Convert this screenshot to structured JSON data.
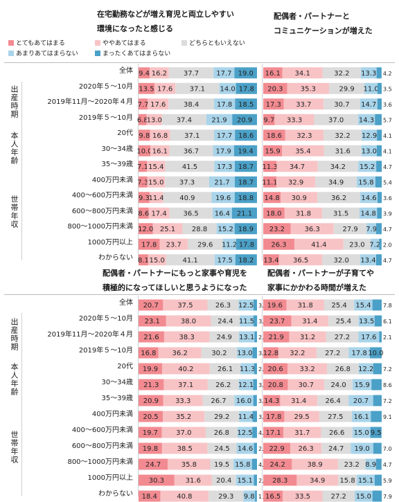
{
  "legend": [
    {
      "label": "とてもあてはまる",
      "color": "#f28b91"
    },
    {
      "label": "ややあてはまる",
      "color": "#f8c3c5"
    },
    {
      "label": "どちらともいえない",
      "color": "#dcdcdc"
    },
    {
      "label": "あまりあてはまらない",
      "color": "#a9d4ea"
    },
    {
      "label": "まったくあてはまらない",
      "color": "#4ba0c7"
    }
  ],
  "row_labels": [
    "全体",
    "2020年５～10月",
    "2019年11月～2020年４月",
    "2019年５～10月",
    "20代",
    "30～34歳",
    "35～39歳",
    "400万円未満",
    "400～600万円未満",
    "600～800万円未満",
    "800～1000万円未満",
    "1000万円以上",
    "わからない"
  ],
  "groups": [
    {
      "label": "出産時期",
      "start": 1,
      "end": 3
    },
    {
      "label": "本人年齢",
      "start": 4,
      "end": 6
    },
    {
      "label": "世帯年収",
      "start": 7,
      "end": 12
    }
  ],
  "chart_data": [
    {
      "type": "bar",
      "stacked": true,
      "orientation": "horizontal",
      "title": [
        "在宅勤務などが増え育児と両立しやすい",
        "環境になったと感じる"
      ],
      "categories": [
        "全体",
        "2020年５～10月",
        "2019年11月～2020年４月",
        "2019年５～10月",
        "20代",
        "30～34歳",
        "35～39歳",
        "400万円未満",
        "400～600万円未満",
        "600～800万円未満",
        "800～1000万円未満",
        "1000万円以上",
        "わからない"
      ],
      "series": [
        {
          "name": "とてもあてはまる",
          "values": [
            9.4,
            13.5,
            7.7,
            6.8,
            9.8,
            10.0,
            7.1,
            7.3,
            9.3,
            8.6,
            12.0,
            17.8,
            8.1
          ]
        },
        {
          "name": "ややあてはまる",
          "values": [
            16.2,
            17.6,
            17.6,
            13.0,
            16.8,
            16.1,
            15.4,
            15.0,
            11.4,
            17.4,
            25.1,
            23.7,
            15.0
          ]
        },
        {
          "name": "どちらともいえない",
          "values": [
            37.7,
            37.1,
            38.4,
            37.4,
            37.1,
            36.7,
            41.5,
            37.3,
            40.9,
            36.5,
            28.8,
            29.6,
            41.1
          ]
        },
        {
          "name": "あまりあてはまらない",
          "values": [
            17.7,
            14.0,
            17.8,
            21.9,
            17.7,
            17.9,
            17.3,
            21.7,
            19.6,
            16.4,
            15.2,
            11.2,
            17.5
          ]
        },
        {
          "name": "まったくあてはまらない",
          "values": [
            19.0,
            17.8,
            18.5,
            20.9,
            18.6,
            19.4,
            18.7,
            18.7,
            18.8,
            21.1,
            18.9,
            17.8,
            18.2
          ]
        }
      ]
    },
    {
      "type": "bar",
      "stacked": true,
      "orientation": "horizontal",
      "title": [
        "配偶者・パートナーと",
        "コミュニケーションが増えた"
      ],
      "categories": [
        "全体",
        "2020年５～10月",
        "2019年11月～2020年４月",
        "2019年５～10月",
        "20代",
        "30～34歳",
        "35～39歳",
        "400万円未満",
        "400～600万円未満",
        "600～800万円未満",
        "800～1000万円未満",
        "1000万円以上",
        "わからない"
      ],
      "series": [
        {
          "name": "とてもあてはまる",
          "values": [
            16.1,
            20.3,
            17.3,
            9.7,
            18.6,
            15.9,
            11.3,
            11.1,
            14.8,
            18.0,
            23.2,
            26.3,
            13.4
          ]
        },
        {
          "name": "ややあてはまる",
          "values": [
            34.1,
            35.3,
            33.7,
            33.3,
            32.3,
            35.4,
            34.7,
            32.9,
            30.9,
            31.8,
            36.3,
            41.4,
            36.5
          ]
        },
        {
          "name": "どちらともいえない",
          "values": [
            32.2,
            29.9,
            30.7,
            37.0,
            32.2,
            31.6,
            34.2,
            34.9,
            36.2,
            31.5,
            27.9,
            23.0,
            32.0
          ]
        },
        {
          "name": "あまりあてはまらない",
          "values": [
            13.3,
            11.0,
            14.7,
            14.3,
            12.9,
            13.0,
            15.2,
            15.8,
            14.6,
            14.8,
            7.9,
            7.2,
            13.4
          ]
        },
        {
          "name": "まったくあてはまらない",
          "values": [
            4.2,
            3.5,
            3.6,
            5.7,
            4.1,
            4.1,
            4.7,
            5.4,
            3.6,
            3.9,
            4.7,
            2.0,
            4.7
          ]
        }
      ]
    },
    {
      "type": "bar",
      "stacked": true,
      "orientation": "horizontal",
      "title": [
        "配偶者・パートナーにもっと家事や育児を",
        "積極的になってほしいと思うようになった"
      ],
      "categories": [
        "全体",
        "2020年５～10月",
        "2019年11月～2020年４月",
        "2019年５～10月",
        "20代",
        "30～34歳",
        "35～39歳",
        "400万円未満",
        "400～600万円未満",
        "600～800万円未満",
        "800～1000万円未満",
        "1000万円以上",
        "わからない"
      ],
      "series": [
        {
          "name": "とてもあてはまる",
          "values": [
            20.7,
            23.1,
            21.6,
            16.8,
            19.9,
            21.3,
            20.9,
            20.5,
            19.7,
            19.8,
            24.7,
            30.3,
            18.4
          ]
        },
        {
          "name": "ややあてはまる",
          "values": [
            37.5,
            38.0,
            38.3,
            36.2,
            40.2,
            37.1,
            33.3,
            35.2,
            37.0,
            38.5,
            35.8,
            31.6,
            40.8
          ]
        },
        {
          "name": "どちらともいえない",
          "values": [
            26.3,
            24.4,
            24.9,
            30.2,
            26.1,
            26.2,
            26.7,
            29.2,
            26.8,
            24.5,
            19.5,
            20.4,
            29.3
          ]
        },
        {
          "name": "あまりあてはまらない",
          "values": [
            12.5,
            11.5,
            13.1,
            13.0,
            11.3,
            12.1,
            16.0,
            11.4,
            12.5,
            14.6,
            15.8,
            15.1,
            9.8
          ]
        },
        {
          "name": "まったくあてはまらない",
          "values": [
            3.0,
            3.1,
            2.1,
            3.8,
            2.5,
            3.3,
            3.0,
            3.7,
            4.0,
            2.6,
            4.2,
            2.6,
            1.6
          ]
        }
      ]
    },
    {
      "type": "bar",
      "stacked": true,
      "orientation": "horizontal",
      "title": [
        "配偶者・パートナーが子育てや",
        "家事にかかわる時間が増えた"
      ],
      "categories": [
        "全体",
        "2020年５～10月",
        "2019年11月～2020年４月",
        "2019年５～10月",
        "20代",
        "30～34歳",
        "35～39歳",
        "400万円未満",
        "400～600万円未満",
        "600～800万円未満",
        "800～1000万円未満",
        "1000万円以上",
        "わからない"
      ],
      "series": [
        {
          "name": "とてもあてはまる",
          "values": [
            19.6,
            23.7,
            21.9,
            12.8,
            20.6,
            20.8,
            14.3,
            17.8,
            17.1,
            22.9,
            24.2,
            28.3,
            16.5
          ]
        },
        {
          "name": "ややあてはまる",
          "values": [
            31.8,
            31.4,
            31.2,
            32.2,
            33.2,
            30.7,
            31.4,
            29.5,
            31.7,
            26.3,
            38.9,
            34.9,
            33.5
          ]
        },
        {
          "name": "どちらともいえない",
          "values": [
            25.4,
            25.4,
            27.2,
            27.2,
            26.8,
            24.0,
            26.4,
            27.5,
            26.6,
            24.7,
            23.2,
            15.8,
            27.2
          ]
        },
        {
          "name": "あまりあてはまらない",
          "values": [
            15.4,
            13.5,
            17.6,
            17.8,
            12.2,
            15.9,
            20.7,
            16.1,
            15.0,
            19.0,
            8.9,
            15.1,
            15.0
          ]
        },
        {
          "name": "まったくあてはまらない",
          "values": [
            7.8,
            6.1,
            2.1,
            10.0,
            7.2,
            8.6,
            7.2,
            9.1,
            9.5,
            7.0,
            4.7,
            5.9,
            7.9
          ]
        }
      ]
    }
  ]
}
